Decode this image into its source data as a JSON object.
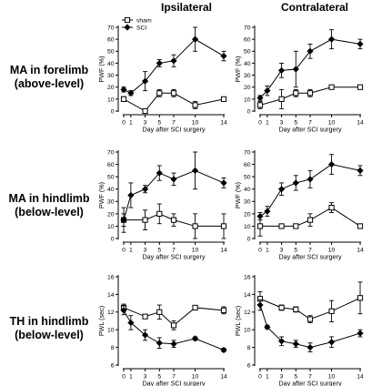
{
  "column_titles": [
    "Ipsilateral",
    "Contralateral"
  ],
  "row_labels": [
    [
      "MA in forelimb",
      "(above-level)"
    ],
    [
      "MA in hindlimb",
      "(below-level)"
    ],
    [
      "TH in hindlimb",
      "(below-level)"
    ]
  ],
  "legend": [
    {
      "name": "sham",
      "marker": "square"
    },
    {
      "name": "SCI",
      "marker": "diamond"
    }
  ],
  "chart_data": [
    {
      "type": "line",
      "row": 0,
      "col": 0,
      "xlabel": "Day after SCI surgery",
      "ylabel": "PWF (%)",
      "x": [
        0,
        1,
        3,
        5,
        7,
        10,
        14
      ],
      "xticks": [
        0,
        1,
        3,
        5,
        7,
        10,
        14
      ],
      "ylim": [
        0,
        70
      ],
      "yticks": [
        0,
        10,
        20,
        30,
        40,
        50,
        60,
        70
      ],
      "series": [
        {
          "name": "sham",
          "values": [
            10,
            null,
            0,
            15,
            15,
            5,
            10
          ],
          "errors": [
            2,
            0,
            1,
            3,
            3,
            3,
            1
          ]
        },
        {
          "name": "SCI",
          "values": [
            18,
            15,
            25,
            40,
            42,
            60,
            46
          ],
          "errors": [
            2,
            2,
            8,
            3,
            5,
            10,
            4
          ]
        }
      ]
    },
    {
      "type": "line",
      "row": 0,
      "col": 1,
      "xlabel": "Day after SCI surgery",
      "ylabel": "PWF (%)",
      "x": [
        0,
        1,
        3,
        5,
        7,
        10,
        14
      ],
      "xticks": [
        0,
        1,
        3,
        5,
        7,
        10,
        14
      ],
      "ylim": [
        0,
        70
      ],
      "yticks": [
        0,
        10,
        20,
        30,
        40,
        50,
        60,
        70
      ],
      "series": [
        {
          "name": "sham",
          "values": [
            5,
            null,
            10,
            15,
            15,
            20,
            20
          ],
          "errors": [
            3,
            0,
            8,
            3,
            3,
            1,
            1
          ]
        },
        {
          "name": "SCI",
          "values": [
            11,
            17,
            34,
            35,
            50,
            60,
            56
          ],
          "errors": [
            2,
            4,
            6,
            15,
            6,
            8,
            4
          ]
        }
      ]
    },
    {
      "type": "line",
      "row": 1,
      "col": 0,
      "xlabel": "Day after SCI surgery",
      "ylabel": "PWF (%)",
      "x": [
        0,
        1,
        3,
        5,
        7,
        10,
        14
      ],
      "xticks": [
        0,
        1,
        3,
        5,
        7,
        10,
        14
      ],
      "ylim": [
        0,
        70
      ],
      "yticks": [
        0,
        10,
        20,
        30,
        40,
        50,
        60,
        70
      ],
      "series": [
        {
          "name": "sham",
          "values": [
            15,
            null,
            15,
            20,
            15,
            10,
            10
          ],
          "errors": [
            10,
            0,
            8,
            8,
            5,
            10,
            10
          ]
        },
        {
          "name": "SCI",
          "values": [
            15,
            35,
            40,
            53,
            48,
            55,
            45
          ],
          "errors": [
            5,
            10,
            3,
            6,
            5,
            15,
            4
          ]
        }
      ]
    },
    {
      "type": "line",
      "row": 1,
      "col": 1,
      "xlabel": "Day after SCI surgery",
      "ylabel": "PWF (%)",
      "x": [
        0,
        1,
        3,
        5,
        7,
        10,
        14
      ],
      "xticks": [
        0,
        1,
        3,
        5,
        7,
        10,
        14
      ],
      "ylim": [
        0,
        70
      ],
      "yticks": [
        0,
        10,
        20,
        30,
        40,
        50,
        60,
        70
      ],
      "series": [
        {
          "name": "sham",
          "values": [
            10,
            null,
            10,
            10,
            15,
            25,
            10
          ],
          "errors": [
            8,
            0,
            1,
            1,
            5,
            4,
            1
          ]
        },
        {
          "name": "SCI",
          "values": [
            18,
            22,
            40,
            45,
            48,
            60,
            55
          ],
          "errors": [
            3,
            4,
            5,
            6,
            7,
            8,
            4
          ]
        }
      ]
    },
    {
      "type": "line",
      "row": 2,
      "col": 0,
      "xlabel": "Day after SCI surgery",
      "ylabel": "PWL (sec)",
      "x": [
        0,
        1,
        3,
        5,
        7,
        10,
        14
      ],
      "xticks": [
        0,
        1,
        3,
        5,
        7,
        10,
        14
      ],
      "ylim": [
        6,
        16
      ],
      "yticks": [
        6,
        8,
        10,
        12,
        14,
        16
      ],
      "series": [
        {
          "name": "sham",
          "values": [
            12.5,
            null,
            11.5,
            12.0,
            10.5,
            12.5,
            12.2
          ],
          "errors": [
            0.4,
            0,
            0.2,
            0.8,
            0.5,
            0.2,
            0.4
          ]
        },
        {
          "name": "SCI",
          "values": [
            12.2,
            10.8,
            9.4,
            8.5,
            8.4,
            9.0,
            7.7
          ],
          "errors": [
            0.5,
            0.8,
            0.6,
            0.6,
            0.4,
            0.2,
            0.2
          ]
        }
      ]
    },
    {
      "type": "line",
      "row": 2,
      "col": 1,
      "xlabel": "Day after SCI surgery",
      "ylabel": "PWL (sec)",
      "x": [
        0,
        1,
        3,
        5,
        7,
        10,
        14
      ],
      "xticks": [
        0,
        1,
        3,
        5,
        7,
        10,
        14
      ],
      "ylim": [
        6,
        16
      ],
      "yticks": [
        6,
        8,
        10,
        12,
        14,
        16
      ],
      "series": [
        {
          "name": "sham",
          "values": [
            13.5,
            null,
            12.5,
            12.3,
            11.2,
            12.1,
            13.6
          ],
          "errors": [
            0.8,
            0,
            0.3,
            0.3,
            0.4,
            1.2,
            1.8
          ]
        },
        {
          "name": "SCI",
          "values": [
            12.8,
            10.3,
            8.7,
            8.4,
            8.0,
            8.6,
            9.6
          ],
          "errors": [
            0.6,
            0.2,
            0.5,
            0.4,
            0.5,
            0.6,
            0.4
          ]
        }
      ]
    }
  ]
}
